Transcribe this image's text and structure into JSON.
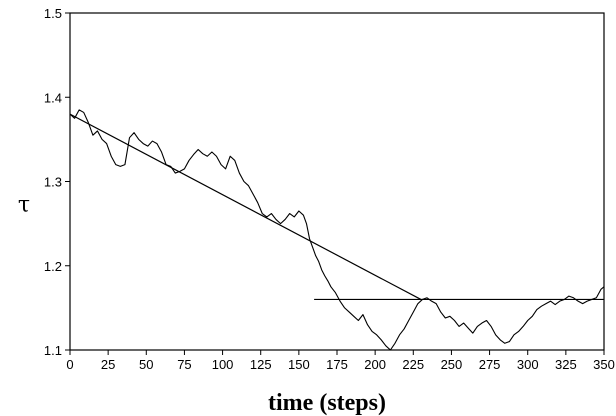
{
  "chart_data": {
    "type": "line",
    "xlabel": "time (steps)",
    "ylabel": "τ",
    "xlim": [
      0,
      350
    ],
    "ylim": [
      1.1,
      1.5
    ],
    "x_ticks": [
      0,
      25,
      50,
      75,
      100,
      125,
      150,
      175,
      200,
      225,
      250,
      275,
      300,
      325,
      350
    ],
    "y_ticks": [
      1.1,
      1.2,
      1.3,
      1.4,
      1.5
    ],
    "x_tick_labels": [
      "0",
      "25",
      "50",
      "75",
      "100",
      "125",
      "150",
      "175",
      "200",
      "225",
      "250",
      "275",
      "300",
      "325",
      "350"
    ],
    "y_tick_labels": [
      "1.1",
      "1.2",
      "1.3",
      "1.4",
      "1.5"
    ],
    "grid": false,
    "series": [
      {
        "points": [
          [
            0,
            1.38
          ],
          [
            3,
            1.375
          ],
          [
            6,
            1.385
          ],
          [
            9,
            1.382
          ],
          [
            12,
            1.37
          ],
          [
            15,
            1.355
          ],
          [
            18,
            1.36
          ],
          [
            21,
            1.35
          ],
          [
            24,
            1.345
          ],
          [
            27,
            1.33
          ],
          [
            30,
            1.32
          ],
          [
            33,
            1.318
          ],
          [
            36,
            1.32
          ],
          [
            39,
            1.352
          ],
          [
            42,
            1.358
          ],
          [
            45,
            1.35
          ],
          [
            48,
            1.345
          ],
          [
            51,
            1.342
          ],
          [
            54,
            1.348
          ],
          [
            57,
            1.345
          ],
          [
            60,
            1.335
          ],
          [
            63,
            1.32
          ],
          [
            66,
            1.318
          ],
          [
            69,
            1.31
          ],
          [
            72,
            1.312
          ],
          [
            75,
            1.315
          ],
          [
            78,
            1.325
          ],
          [
            81,
            1.332
          ],
          [
            84,
            1.338
          ],
          [
            87,
            1.333
          ],
          [
            90,
            1.33
          ],
          [
            93,
            1.335
          ],
          [
            96,
            1.33
          ],
          [
            99,
            1.32
          ],
          [
            102,
            1.315
          ],
          [
            105,
            1.33
          ],
          [
            108,
            1.325
          ],
          [
            111,
            1.31
          ],
          [
            114,
            1.3
          ],
          [
            117,
            1.295
          ],
          [
            120,
            1.285
          ],
          [
            123,
            1.275
          ],
          [
            126,
            1.262
          ],
          [
            129,
            1.258
          ],
          [
            132,
            1.262
          ],
          [
            135,
            1.255
          ],
          [
            138,
            1.25
          ],
          [
            141,
            1.255
          ],
          [
            144,
            1.262
          ],
          [
            147,
            1.258
          ],
          [
            150,
            1.265
          ],
          [
            153,
            1.26
          ],
          [
            155,
            1.25
          ],
          [
            157,
            1.232
          ],
          [
            159,
            1.222
          ],
          [
            161,
            1.212
          ],
          [
            163,
            1.205
          ],
          [
            165,
            1.195
          ],
          [
            167,
            1.188
          ],
          [
            169,
            1.182
          ],
          [
            171,
            1.175
          ],
          [
            174,
            1.168
          ],
          [
            177,
            1.158
          ],
          [
            180,
            1.15
          ],
          [
            183,
            1.145
          ],
          [
            186,
            1.14
          ],
          [
            189,
            1.135
          ],
          [
            192,
            1.142
          ],
          [
            195,
            1.13
          ],
          [
            198,
            1.122
          ],
          [
            201,
            1.118
          ],
          [
            204,
            1.112
          ],
          [
            207,
            1.105
          ],
          [
            210,
            1.1
          ],
          [
            213,
            1.108
          ],
          [
            216,
            1.118
          ],
          [
            219,
            1.125
          ],
          [
            222,
            1.135
          ],
          [
            225,
            1.145
          ],
          [
            228,
            1.155
          ],
          [
            231,
            1.16
          ],
          [
            234,
            1.162
          ],
          [
            237,
            1.158
          ],
          [
            240,
            1.155
          ],
          [
            243,
            1.145
          ],
          [
            246,
            1.138
          ],
          [
            249,
            1.14
          ],
          [
            252,
            1.135
          ],
          [
            255,
            1.128
          ],
          [
            258,
            1.132
          ],
          [
            261,
            1.126
          ],
          [
            264,
            1.12
          ],
          [
            267,
            1.128
          ],
          [
            270,
            1.132
          ],
          [
            273,
            1.135
          ],
          [
            276,
            1.128
          ],
          [
            279,
            1.118
          ],
          [
            282,
            1.112
          ],
          [
            285,
            1.108
          ],
          [
            288,
            1.11
          ],
          [
            291,
            1.118
          ],
          [
            294,
            1.122
          ],
          [
            297,
            1.128
          ],
          [
            300,
            1.135
          ],
          [
            303,
            1.14
          ],
          [
            306,
            1.148
          ],
          [
            309,
            1.152
          ],
          [
            312,
            1.155
          ],
          [
            315,
            1.158
          ],
          [
            318,
            1.154
          ],
          [
            321,
            1.158
          ],
          [
            324,
            1.16
          ],
          [
            327,
            1.164
          ],
          [
            330,
            1.162
          ],
          [
            333,
            1.158
          ],
          [
            336,
            1.155
          ],
          [
            339,
            1.158
          ],
          [
            342,
            1.16
          ],
          [
            345,
            1.162
          ],
          [
            348,
            1.172
          ],
          [
            350,
            1.175
          ]
        ]
      },
      {
        "points": [
          [
            0,
            1.38
          ],
          [
            230,
            1.16
          ]
        ]
      },
      {
        "points": [
          [
            160,
            1.16
          ],
          [
            350,
            1.16
          ]
        ]
      }
    ]
  }
}
